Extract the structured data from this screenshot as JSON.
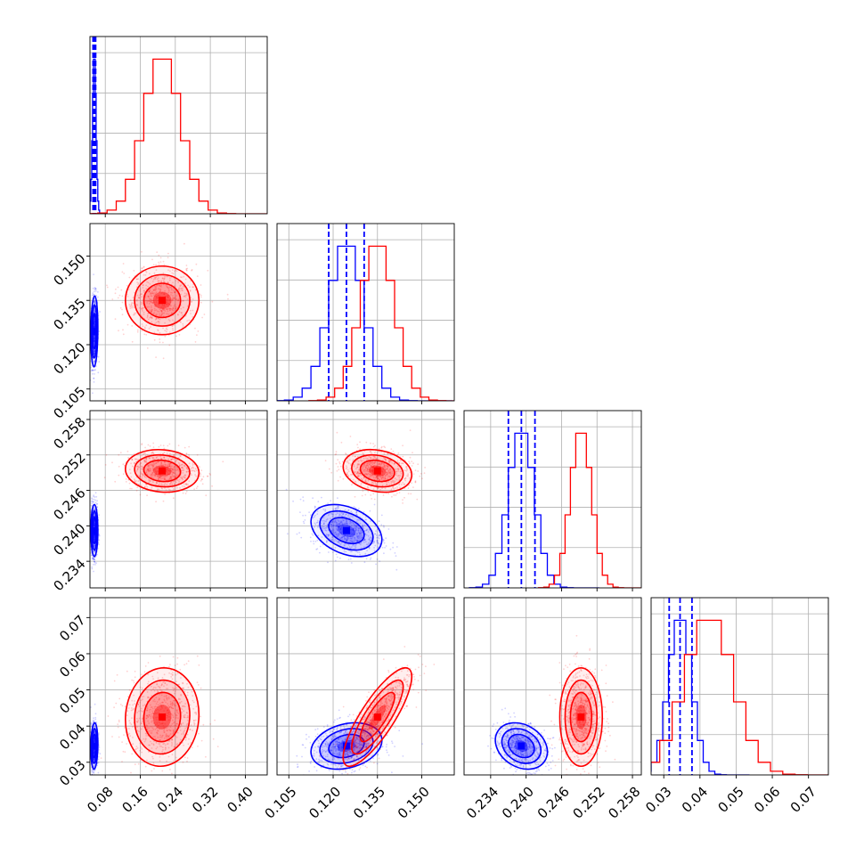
{
  "chart_data": {
    "type": "corner",
    "title": "",
    "colors": {
      "series_a": "#0000ff",
      "series_b": "#ff0000"
    },
    "grid": true,
    "legend": "none",
    "parameters": [
      {
        "range": [
          0.045,
          0.45
        ],
        "ticks": [
          "0.08",
          "0.16",
          "0.24",
          "0.32",
          "0.40"
        ],
        "tick_values": [
          0.08,
          0.16,
          0.24,
          0.32,
          0.4
        ]
      },
      {
        "range": [
          0.101,
          0.161
        ],
        "ticks": [
          "0.105",
          "0.120",
          "0.135",
          "0.150"
        ],
        "tick_values": [
          0.105,
          0.12,
          0.135,
          0.15
        ]
      },
      {
        "range": [
          0.2295,
          0.2595
        ],
        "ticks": [
          "0.234",
          "0.240",
          "0.246",
          "0.252",
          "0.258"
        ],
        "tick_values": [
          0.234,
          0.24,
          0.246,
          0.252,
          0.258
        ]
      },
      {
        "range": [
          0.0265,
          0.0755
        ],
        "ticks": [
          "0.03",
          "0.04",
          "0.05",
          "0.06",
          "0.07"
        ],
        "tick_values": [
          0.03,
          0.04,
          0.05,
          0.06,
          0.07
        ]
      }
    ],
    "series": [
      {
        "color": "#0000ff",
        "means": [
          0.055,
          0.1245,
          0.2392,
          0.0345
        ],
        "sigmas": [
          0.004,
          0.006,
          0.0022,
          0.0032
        ],
        "quantiles": [
          [
            0.052,
            0.055,
            0.058
          ],
          [
            0.1185,
            0.1245,
            0.1305
          ],
          [
            0.237,
            0.2392,
            0.2415
          ],
          [
            0.0315,
            0.0345,
            0.0378
          ]
        ],
        "correlations": [
          [
            0,
            1,
            0.1
          ],
          [
            0,
            2,
            0.0
          ],
          [
            0,
            3,
            0.1
          ],
          [
            1,
            2,
            -0.35
          ],
          [
            1,
            3,
            0.25
          ],
          [
            2,
            3,
            -0.25
          ]
        ]
      },
      {
        "color": "#ff0000",
        "means": [
          0.21,
          0.135,
          0.2493,
          0.0425
        ],
        "sigmas": [
          0.042,
          0.0058,
          0.0018,
          0.0068
        ],
        "correlations": [
          [
            0,
            1,
            0.0
          ],
          [
            0,
            2,
            -0.1
          ],
          [
            0,
            3,
            0.05
          ],
          [
            1,
            2,
            -0.2
          ],
          [
            1,
            3,
            0.82
          ],
          [
            2,
            3,
            0.0
          ]
        ]
      }
    ]
  }
}
